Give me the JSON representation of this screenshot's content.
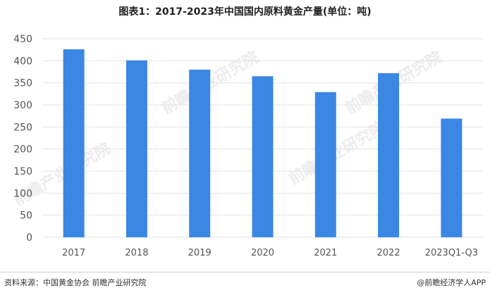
{
  "title": "图表1：2017-2023年中国国内原料黄金产量(单位：吨)",
  "source": "资料来源：中国黄金协会 前瞻产业研究院",
  "brand": "@前瞻经济学人APP",
  "watermark_text": "前瞻产业研究院",
  "colors": {
    "bar": "#3a87e4",
    "grid": "#e2e2e2",
    "axis_text": "#555555"
  },
  "chart_data": {
    "type": "bar",
    "title": "图表1：2017-2023年中国国内原料黄金产量(单位：吨)",
    "categories": [
      "2017",
      "2018",
      "2019",
      "2020",
      "2021",
      "2022",
      "2023Q1-Q3"
    ],
    "values": [
      426,
      401,
      380,
      365,
      329,
      372,
      269
    ],
    "xlabel": "",
    "ylabel": "",
    "ylim": [
      0,
      450
    ],
    "yticks": [
      0,
      50,
      100,
      150,
      200,
      250,
      300,
      350,
      400,
      450
    ],
    "grid": true,
    "legend": "none"
  }
}
